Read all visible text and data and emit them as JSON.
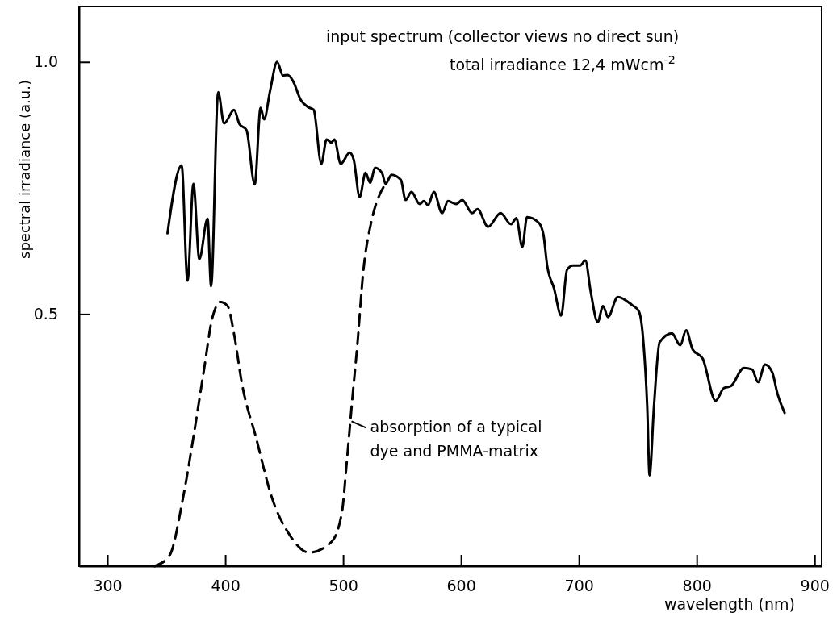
{
  "chart_data": {
    "type": "line",
    "xlabel": "wavelength (nm)",
    "ylabel": "spectral irradiance (a.u.)",
    "xlim": [
      276,
      906
    ],
    "ylim": [
      0,
      1.11
    ],
    "xticks": [
      300,
      400,
      500,
      600,
      700,
      800,
      900
    ],
    "yticks": [
      {
        "value": 0.5,
        "label": "0.5"
      },
      {
        "value": 1.0,
        "label": "1.0"
      }
    ],
    "grid": false,
    "series": [
      {
        "color": "#000000",
        "line_style": "solid",
        "x": [
          351,
          363,
          368,
          373,
          378,
          385,
          388,
          394,
          399,
          407.5,
          412,
          418,
          425,
          430,
          433,
          438,
          444,
          449,
          453,
          457.5,
          464,
          470.5,
          475,
          481.5,
          486,
          490,
          492.5,
          498,
          505.5,
          509,
          514,
          519,
          523,
          527,
          533,
          536,
          541,
          549,
          553,
          558,
          565,
          568.5,
          572,
          577,
          584,
          589,
          596,
          601,
          609.6,
          614,
          623,
          633.6,
          642.5,
          647,
          652,
          656,
          666,
          670,
          673,
          679,
          685,
          690,
          695,
          701,
          705.5,
          710,
          716,
          720.5,
          724.7,
          733,
          745,
          751,
          755,
          758,
          760,
          763.7,
          768.5,
          779,
          786,
          791,
          796.5,
          805,
          816,
          823,
          829,
          840,
          847,
          852,
          858,
          864,
          868.5,
          874.6
        ],
        "values": [
          0.66,
          0.795,
          0.566,
          0.758,
          0.609,
          0.689,
          0.555,
          0.94,
          0.878,
          0.905,
          0.877,
          0.865,
          0.757,
          0.909,
          0.886,
          0.942,
          1.0,
          0.973,
          0.974,
          0.962,
          0.925,
          0.91,
          0.905,
          0.798,
          0.846,
          0.84,
          0.846,
          0.798,
          0.82,
          0.806,
          0.732,
          0.78,
          0.76,
          0.79,
          0.78,
          0.758,
          0.776,
          0.766,
          0.726,
          0.742,
          0.718,
          0.724,
          0.716,
          0.742,
          0.7,
          0.724,
          0.718,
          0.726,
          0.7,
          0.708,
          0.673,
          0.7,
          0.678,
          0.69,
          0.633,
          0.692,
          0.681,
          0.657,
          0.598,
          0.55,
          0.497,
          0.588,
          0.596,
          0.596,
          0.606,
          0.545,
          0.484,
          0.516,
          0.494,
          0.534,
          0.518,
          0.505,
          0.438,
          0.316,
          0.18,
          0.316,
          0.444,
          0.462,
          0.438,
          0.468,
          0.43,
          0.412,
          0.328,
          0.353,
          0.357,
          0.393,
          0.39,
          0.365,
          0.4,
          0.385,
          0.342,
          0.304
        ]
      },
      {
        "color": "#000000",
        "line_style": "dashed",
        "x": [
          340,
          352.7,
          364,
          373,
          382,
          389,
          396,
          402,
          407.5,
          414,
          426,
          440,
          455.5,
          471,
          490,
          499,
          503,
          508,
          512,
          517,
          524,
          531,
          536
        ],
        "values": [
          0,
          0.021,
          0.133,
          0.256,
          0.39,
          0.492,
          0.524,
          0.516,
          0.46,
          0.364,
          0.256,
          0.133,
          0.059,
          0.027,
          0.048,
          0.107,
          0.204,
          0.337,
          0.437,
          0.582,
          0.684,
          0.737,
          0.758
        ]
      }
    ],
    "annotations": [
      "input spectrum (collector views no direct sun)",
      "total irradiance 12,4 mWcm$^{-2}$",
      {
        "text": "absorption of a typical dye and PMMA-matrix",
        "x": 503,
        "y": 0.3
      }
    ]
  }
}
